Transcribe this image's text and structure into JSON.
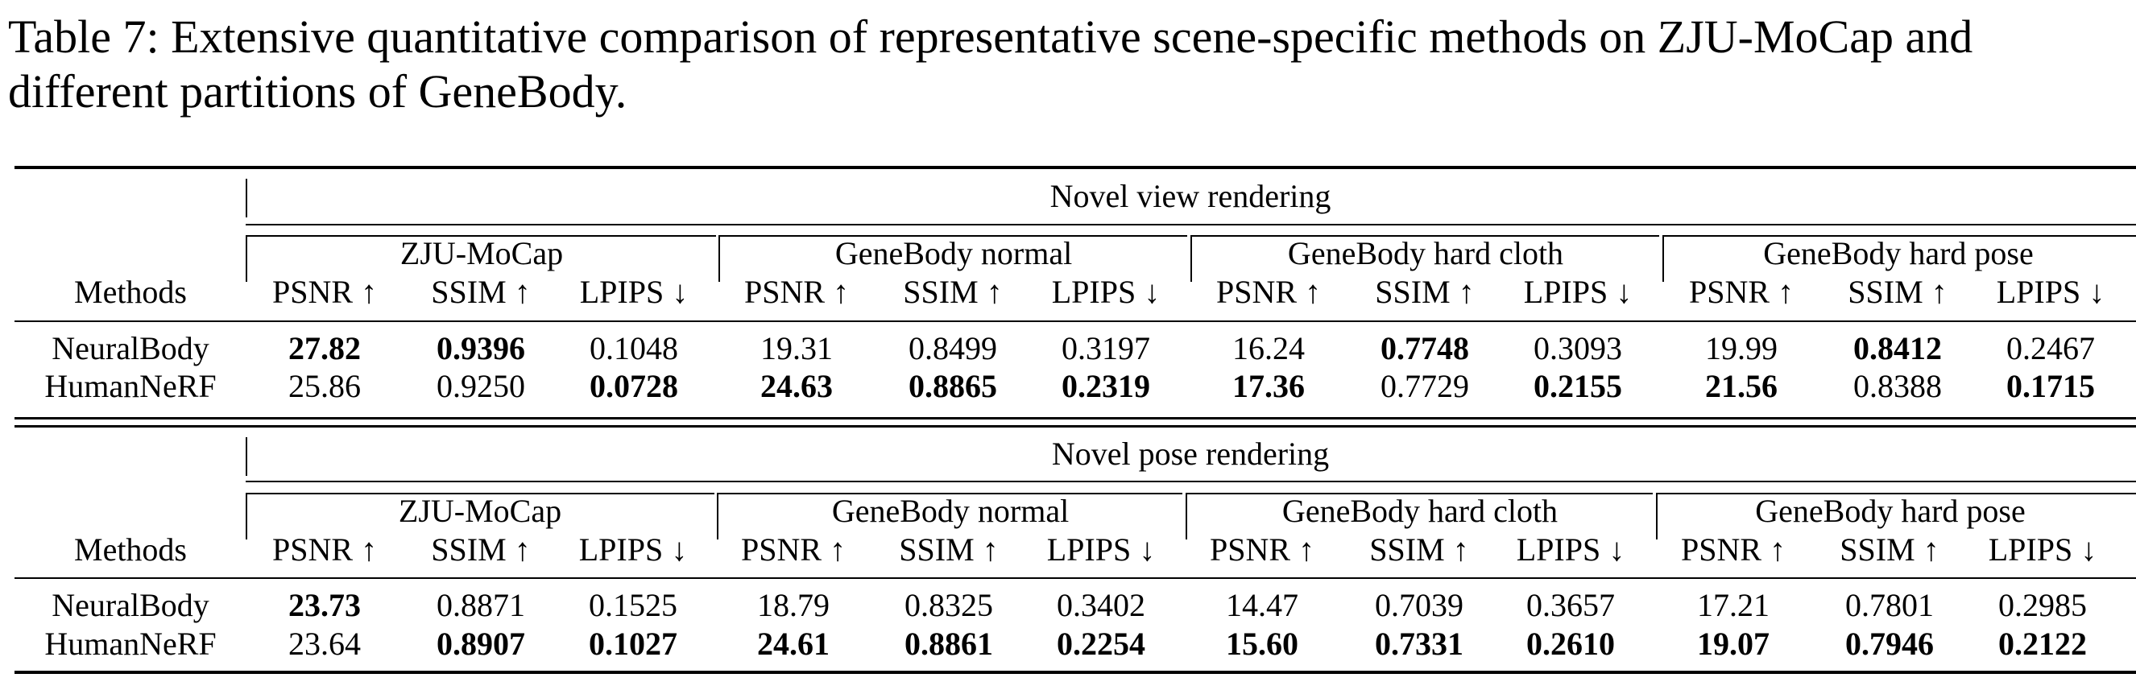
{
  "caption": "Table 7: Extensive quantitative comparison of representative scene-specific methods on ZJU-MoCap and different partitions of GeneBody.",
  "table": {
    "methods_header": "Methods",
    "metrics": [
      "PSNR ↑",
      "SSIM ↑",
      "LPIPS ↓"
    ],
    "datasets": [
      "ZJU-MoCap",
      "GeneBody normal",
      "GeneBody hard cloth",
      "GeneBody hard pose"
    ],
    "sections": [
      {
        "title": "Novel view rendering",
        "rows": [
          {
            "method": "NeuralBody",
            "values": [
              "27.82",
              "0.9396",
              "0.1048",
              "19.31",
              "0.8499",
              "0.3197",
              "16.24",
              "0.7748",
              "0.3093",
              "19.99",
              "0.8412",
              "0.2467"
            ]
          },
          {
            "method": "HumanNeRF",
            "values": [
              "25.86",
              "0.9250",
              "0.0728",
              "24.63",
              "0.8865",
              "0.2319",
              "17.36",
              "0.7729",
              "0.2155",
              "21.56",
              "0.8388",
              "0.1715"
            ]
          }
        ]
      },
      {
        "title": "Novel pose rendering",
        "rows": [
          {
            "method": "NeuralBody",
            "values": [
              "23.73",
              "0.8871",
              "0.1525",
              "18.79",
              "0.8325",
              "0.3402",
              "14.47",
              "0.7039",
              "0.3657",
              "17.21",
              "0.7801",
              "0.2985"
            ]
          },
          {
            "method": "HumanNeRF",
            "values": [
              "23.64",
              "0.8907",
              "0.1027",
              "24.61",
              "0.8861",
              "0.2254",
              "15.60",
              "0.7331",
              "0.2610",
              "19.07",
              "0.7946",
              "0.2122"
            ]
          }
        ]
      }
    ]
  }
}
